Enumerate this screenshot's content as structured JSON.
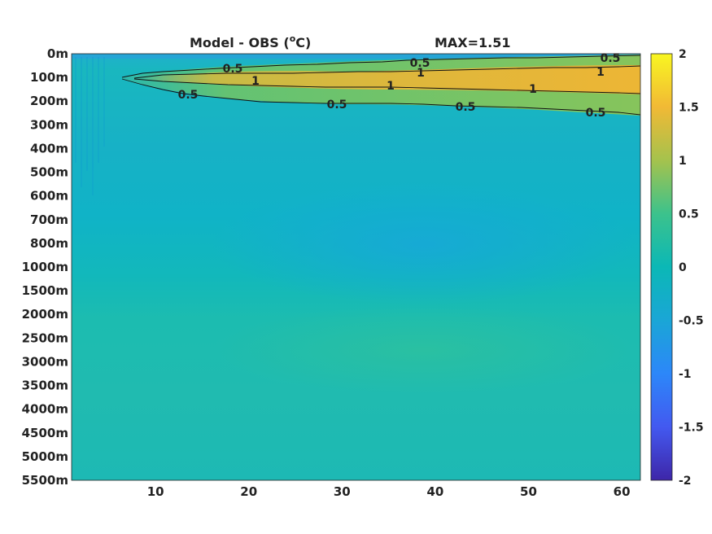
{
  "chart_data": {
    "type": "heatmap",
    "title": "Model - OBS (",
    "title_sup": "o",
    "title_unit": "C)",
    "max_label": "MAX=1.51",
    "x_ticks": [
      10,
      20,
      30,
      40,
      50,
      60
    ],
    "xlim": [
      1,
      62
    ],
    "y_ticks": [
      "0m",
      "100m",
      "200m",
      "300m",
      "400m",
      "500m",
      "600m",
      "700m",
      "800m",
      "1000m",
      "1500m",
      "2000m",
      "2500m",
      "3000m",
      "3500m",
      "4000m",
      "4500m",
      "5000m",
      "5500m"
    ],
    "colorbar": {
      "ticks": [
        "2",
        "1.5",
        "1",
        "0.5",
        "0",
        "-0.5",
        "-1",
        "-1.5",
        "-2"
      ],
      "range": [
        -2,
        2
      ],
      "colormap": "parula"
    },
    "contours": [
      {
        "level": "0.5",
        "labels": [
          {
            "x": 18,
            "depth": "100m"
          },
          {
            "x": 13,
            "depth": "200m"
          },
          {
            "x": 28,
            "depth": "200m"
          },
          {
            "x": 38,
            "depth": "0m"
          },
          {
            "x": 43,
            "depth": "200m"
          },
          {
            "x": 59,
            "depth": "0m"
          },
          {
            "x": 58,
            "depth": "200m"
          }
        ]
      },
      {
        "level": "1",
        "labels": [
          {
            "x": 21,
            "depth": "100m"
          },
          {
            "x": 35,
            "depth": "100m"
          },
          {
            "x": 39,
            "depth": "100m"
          },
          {
            "x": 50,
            "depth": "100m"
          },
          {
            "x": 58,
            "depth": "100m"
          }
        ]
      }
    ],
    "max": 1.51
  }
}
